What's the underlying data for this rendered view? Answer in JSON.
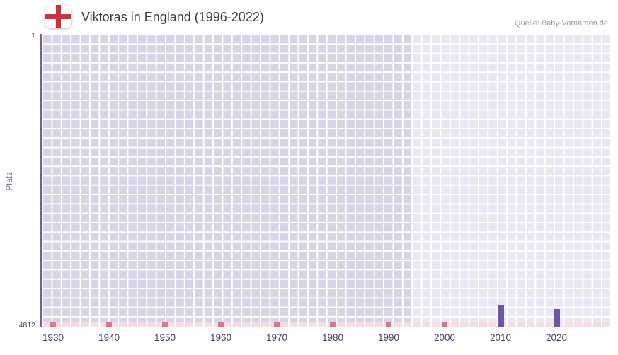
{
  "header": {
    "title": "Viktoras in England (1996-2022)",
    "source": "Quelle: Baby-Vornamen.de"
  },
  "icons": {
    "flag": "england-flag-icon"
  },
  "chart_data": {
    "type": "bar",
    "title": "Viktoras in England (1996-2022)",
    "xlabel": "",
    "ylabel": "Platz",
    "grid": true,
    "y_axis": {
      "min": 1,
      "max": 4812,
      "top_label": "1",
      "bottom_label": "4812",
      "inverted": true
    },
    "x_ticks": [
      1930,
      1940,
      1950,
      1960,
      1970,
      1980,
      1990,
      2000,
      2010,
      2020
    ],
    "highlight_band": {
      "start_year": 1994
    },
    "series": [
      {
        "name": "Platz",
        "points": [
          {
            "year": 2010,
            "rank": 4440
          },
          {
            "year": 2020,
            "rank": 4510
          }
        ]
      }
    ],
    "colors": {
      "bar": "#7155a3",
      "axis": "#6f5fa8",
      "grid_cell": "#d9d3e8",
      "strip_cell": "#f8dce2",
      "strip_mark": "#e27487",
      "band_overlay": "rgba(255,255,255,0.45)",
      "flag_red": "#d42f3c"
    }
  }
}
